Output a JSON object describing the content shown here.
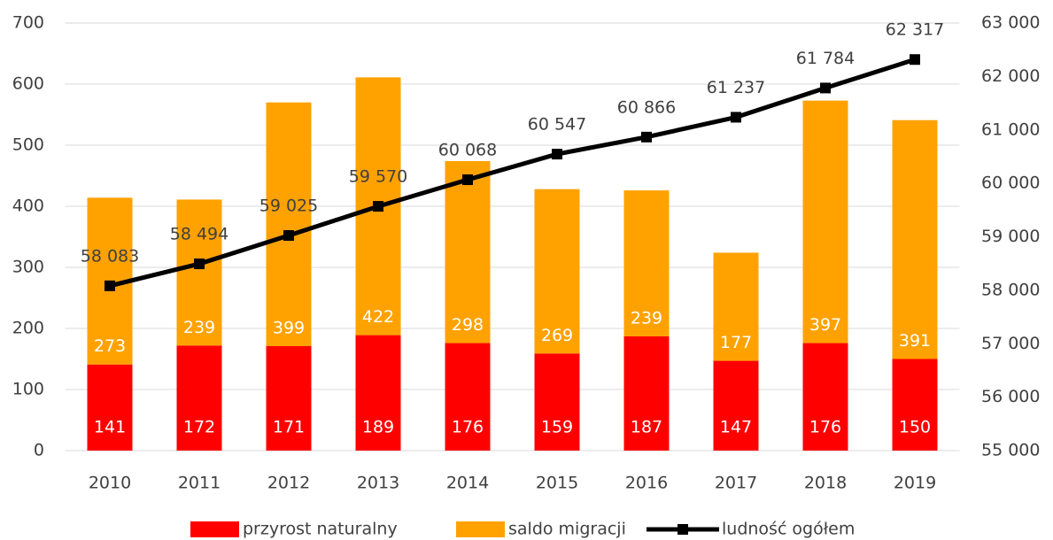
{
  "chart_data": {
    "type": "bar",
    "stacked": true,
    "categories": [
      "2010",
      "2011",
      "2012",
      "2013",
      "2014",
      "2015",
      "2016",
      "2017",
      "2018",
      "2019"
    ],
    "series": [
      {
        "name": "przyrost naturalny",
        "color": "#ff0000",
        "values": [
          141,
          172,
          171,
          189,
          176,
          159,
          187,
          147,
          176,
          150
        ]
      },
      {
        "name": "saldo migracji",
        "color": "#ffa200",
        "values": [
          273,
          239,
          399,
          422,
          298,
          269,
          239,
          177,
          397,
          391
        ]
      },
      {
        "name": "ludność ogółem",
        "color": "#000000",
        "type": "line",
        "axis": "y2",
        "values": [
          58083,
          58494,
          59025,
          59570,
          60068,
          60547,
          60866,
          61237,
          61784,
          62317
        ],
        "value_labels": [
          "58 083",
          "58 494",
          "59 025",
          "59 570",
          "60 068",
          "60 547",
          "60 866",
          "61 237",
          "61 784",
          "62 317"
        ]
      }
    ],
    "ylim": [
      0,
      700
    ],
    "yticks": [
      0,
      100,
      200,
      300,
      400,
      500,
      600,
      700
    ],
    "y2lim": [
      55000,
      63000
    ],
    "y2ticks": [
      {
        "value": 55000,
        "label": "55 000"
      },
      {
        "value": 56000,
        "label": "56 000"
      },
      {
        "value": 57000,
        "label": "57 000"
      },
      {
        "value": 58000,
        "label": "58 000"
      },
      {
        "value": 59000,
        "label": "59 000"
      },
      {
        "value": 60000,
        "label": "60 000"
      },
      {
        "value": 61000,
        "label": "61 000"
      },
      {
        "value": 62000,
        "label": "62 000"
      },
      {
        "value": 63000,
        "label": "63 000"
      }
    ],
    "grid": true,
    "legend": "bottom"
  }
}
